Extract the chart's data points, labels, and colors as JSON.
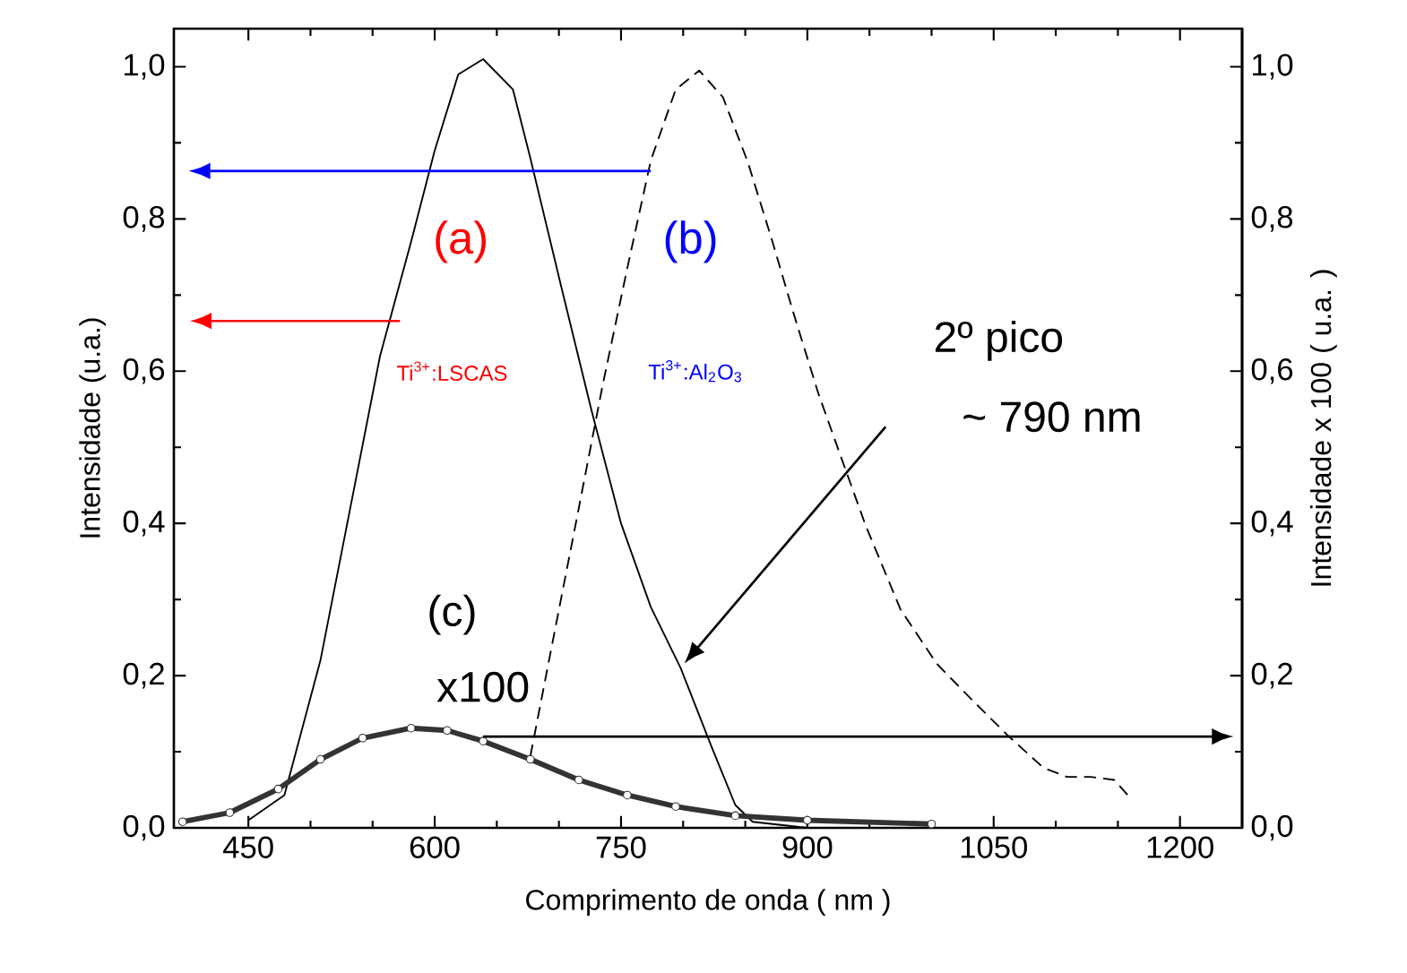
{
  "chart_data": {
    "type": "line",
    "xlabel": "Comprimento de onda ( nm )",
    "ylabel": "Intensidade (u.a.)",
    "y2label": "Intensidade  x 100 ( u.a. )",
    "xlim": [
      390,
      1250
    ],
    "xticks": [
      450,
      600,
      750,
      900,
      1050,
      1200
    ],
    "ylim": [
      0,
      1.05
    ],
    "yticks": [
      {
        "value": 0,
        "label": "0,0"
      },
      {
        "value": 0.2,
        "label": "0,2"
      },
      {
        "value": 0.4,
        "label": "0,4"
      },
      {
        "value": 0.6,
        "label": "0,6"
      },
      {
        "value": 0.8,
        "label": "0,8"
      },
      {
        "value": 1.0,
        "label": "1,0"
      }
    ],
    "y2lim": [
      0,
      1.05
    ],
    "y2ticks": [
      {
        "value": 0,
        "label": "0,0"
      },
      {
        "value": 0.2,
        "label": "0,2"
      },
      {
        "value": 0.4,
        "label": "0,4"
      },
      {
        "value": 0.6,
        "label": "0,6"
      },
      {
        "value": 0.8,
        "label": "0,8"
      },
      {
        "value": 1.0,
        "label": "1,0"
      }
    ],
    "series": [
      {
        "color": "#000000",
        "line_style": "solid",
        "x": [
          450,
          479,
          508,
          532,
          556,
          581,
          600,
          619,
          639,
          663,
          677,
          702,
          726,
          750,
          774,
          798,
          823,
          842,
          856,
          900
        ],
        "values": [
          0.01,
          0.043,
          0.22,
          0.42,
          0.62,
          0.77,
          0.89,
          0.99,
          1.01,
          0.97,
          0.88,
          0.71,
          0.55,
          0.4,
          0.29,
          0.21,
          0.106,
          0.03,
          0.008,
          0.0
        ]
      },
      {
        "color": "#000000",
        "line_style": "dashed",
        "x": [
          677,
          692,
          716,
          735,
          755,
          774,
          794,
          813,
          832,
          852,
          871,
          890,
          909,
          928,
          947,
          975,
          1004,
          1032,
          1061,
          1090,
          1109,
          1128,
          1147,
          1158
        ],
        "values": [
          0.094,
          0.22,
          0.42,
          0.58,
          0.735,
          0.877,
          0.97,
          0.995,
          0.96,
          0.875,
          0.775,
          0.67,
          0.57,
          0.483,
          0.397,
          0.287,
          0.216,
          0.169,
          0.122,
          0.079,
          0.067,
          0.067,
          0.063,
          0.043
        ]
      },
      {
        "color": "#333333",
        "line_style": "solid",
        "marker": "circle",
        "axis": "y2",
        "x": [
          397,
          435,
          474,
          508,
          542,
          581,
          610,
          639,
          677,
          716,
          755,
          794,
          842,
          900,
          1000
        ],
        "values": [
          0.008,
          0.02,
          0.051,
          0.09,
          0.118,
          0.131,
          0.128,
          0.114,
          0.09,
          0.063,
          0.043,
          0.028,
          0.016,
          0.01,
          0.005
        ]
      }
    ],
    "annotations": [
      "(a)",
      "(b)",
      "Ti$^{3+}$:LSCAS",
      "Ti$^{3+}$:Al$_{2}$O$_{3}$",
      "2º pico",
      "~ 790 nm",
      "(c)",
      "x100"
    ]
  }
}
